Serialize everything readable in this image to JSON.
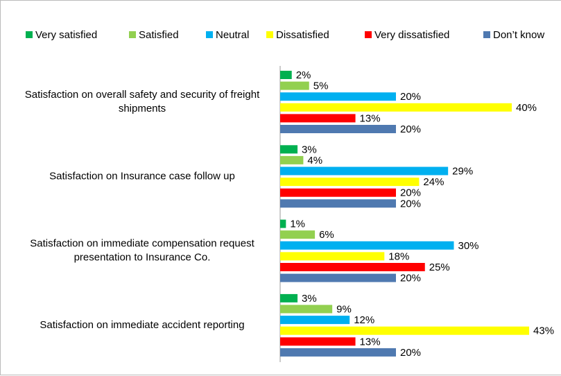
{
  "chart_data": {
    "type": "hbar",
    "categories": [
      "Satisfaction on overall safety and security of freight shipments",
      "Satisfaction on Insurance case follow up",
      "Satisfaction on immediate compensation request presentation to Insurance Co.",
      "Satisfaction on immediate accident reporting"
    ],
    "series": [
      {
        "name": "Very satisfied",
        "color": "#00b050",
        "values": [
          2,
          3,
          1,
          3
        ],
        "value_labels": [
          "2%",
          "3%",
          "1%",
          "3%"
        ]
      },
      {
        "name": "Satisfied",
        "color": "#92d050",
        "values": [
          5,
          4,
          6,
          9
        ],
        "value_labels": [
          "5%",
          "4%",
          "6%",
          "9%"
        ]
      },
      {
        "name": "Neutral",
        "color": "#00b0f0",
        "values": [
          20,
          29,
          30,
          12
        ],
        "value_labels": [
          "20%",
          "29%",
          "30%",
          "12%"
        ]
      },
      {
        "name": "Dissatisfied",
        "color": "#ffff00",
        "values": [
          40,
          24,
          18,
          43
        ],
        "value_labels": [
          "40%",
          "24%",
          "18%",
          "43%"
        ]
      },
      {
        "name": "Very dissatisfied",
        "color": "#ff0000",
        "values": [
          13,
          20,
          25,
          13
        ],
        "value_labels": [
          "13%",
          "20%",
          "25%",
          "13%"
        ]
      },
      {
        "name": "Don’t know",
        "color": "#4f79b0",
        "values": [
          20,
          20,
          20,
          20
        ],
        "value_labels": [
          "20%",
          "20%",
          "20%",
          "20%"
        ]
      }
    ],
    "legend": "top"
  }
}
